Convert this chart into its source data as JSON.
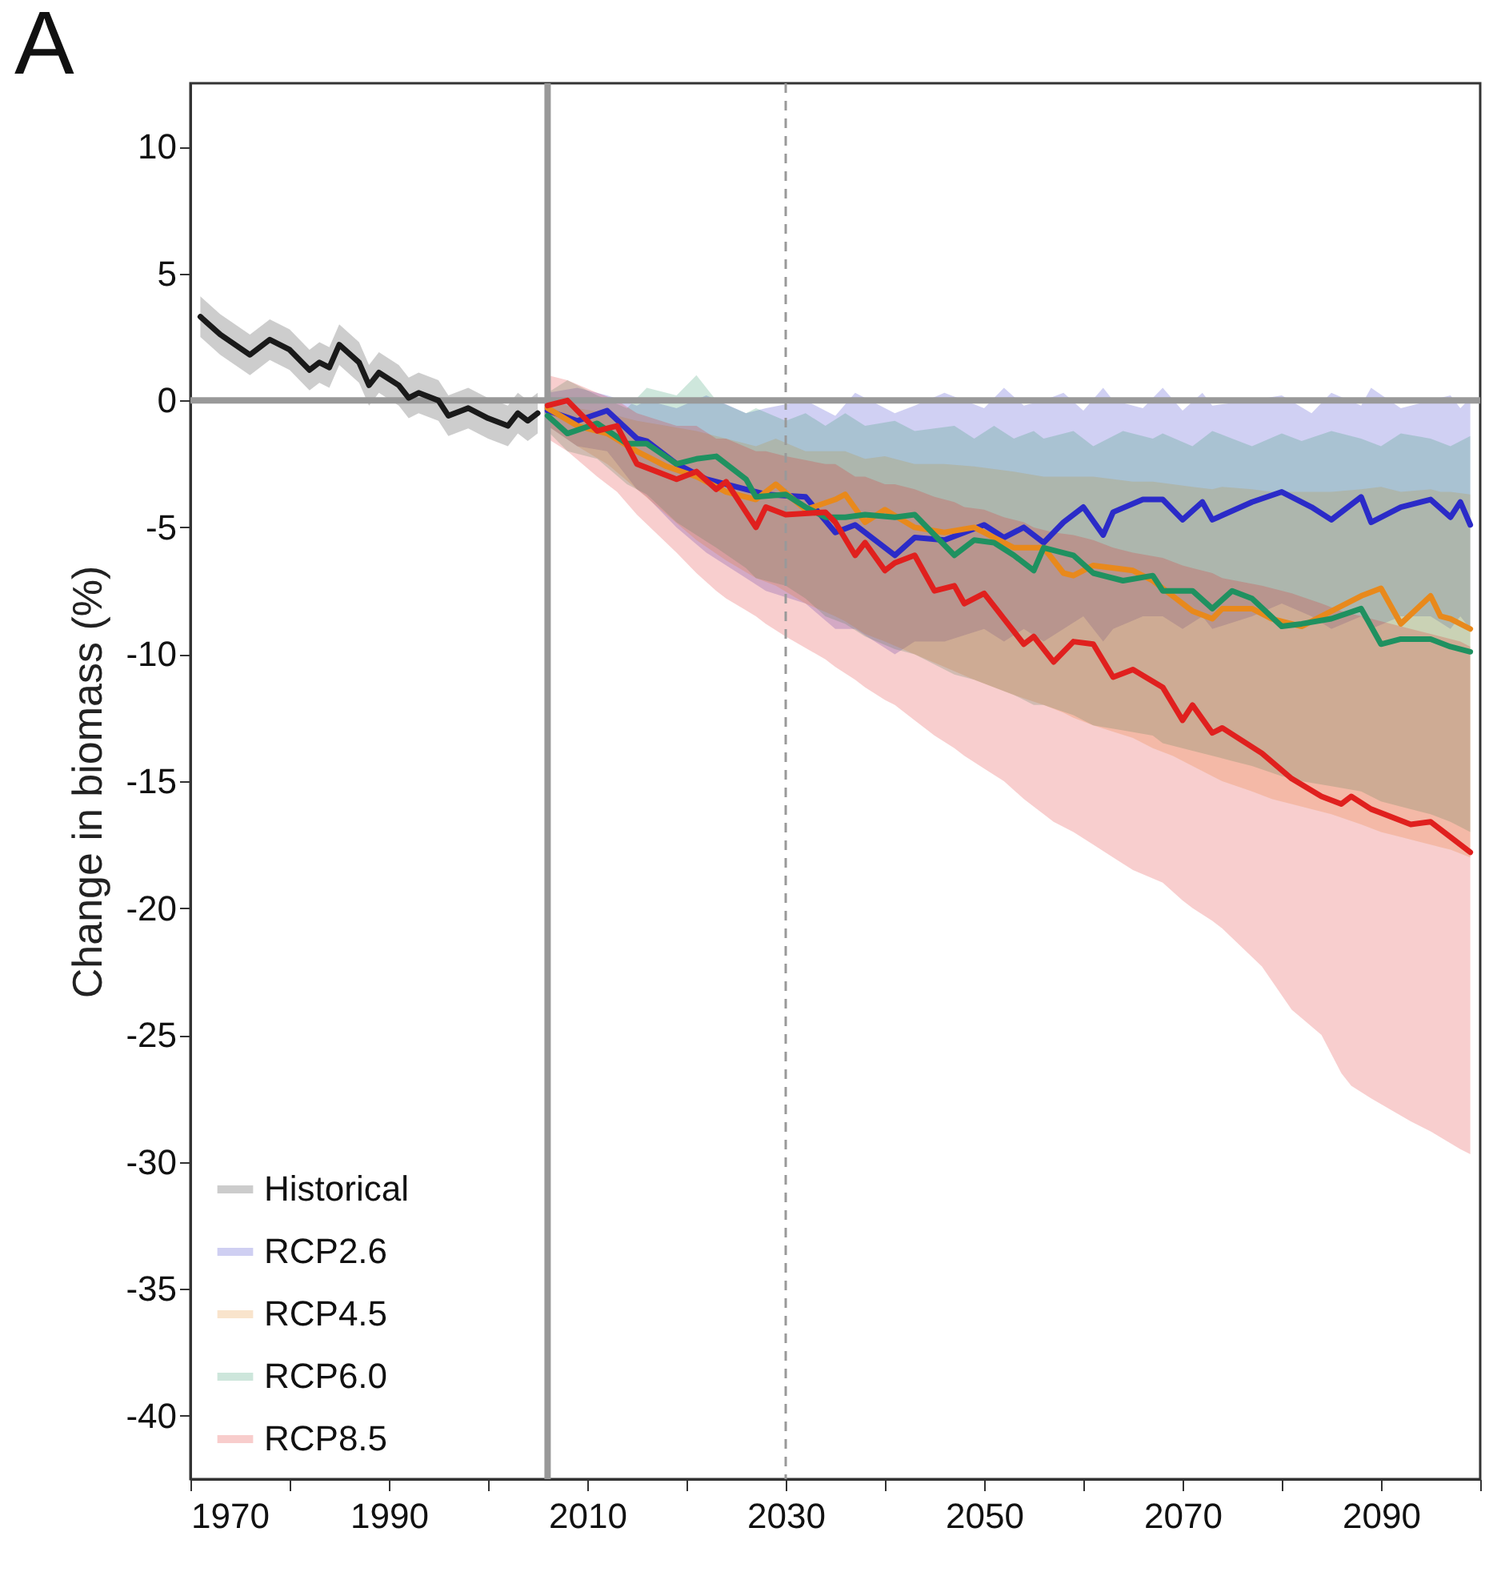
{
  "chart_data": {
    "type": "line",
    "title": "A",
    "ylabel": "Change in biomass (%)",
    "xlim": [
      1970,
      2100
    ],
    "xticks": [
      1970,
      {
        "value": 1980,
        "label": null
      },
      1990,
      {
        "value": 2000,
        "label": null
      },
      2010,
      {
        "value": 2020,
        "label": null
      },
      2030,
      {
        "value": 2040,
        "label": null
      },
      2050,
      {
        "value": 2060,
        "label": null
      },
      2070,
      {
        "value": 2080,
        "label": null
      },
      2090,
      {
        "value": 2100,
        "label": null
      }
    ],
    "ylim": [
      -42.5,
      12.5
    ],
    "yticks": [
      -40,
      -35,
      -30,
      -25,
      -20,
      -15,
      -10,
      -5,
      0,
      5,
      10
    ],
    "grid": false,
    "legend": "bottom left",
    "ref_lines": [
      {
        "axis": "y",
        "value": 0,
        "color": "#999999",
        "line_style": "solid"
      },
      {
        "axis": "x",
        "value": 2006,
        "color": "#999999",
        "line_style": "solid"
      },
      {
        "axis": "x",
        "value": 2030,
        "color": "#999999",
        "line_style": "dashed"
      }
    ],
    "series": [
      {
        "name": "Historical",
        "color": "#1a1a1a",
        "x": [
          1971,
          1973,
          1976,
          1978,
          1980,
          1982,
          1983,
          1984,
          1985,
          1987,
          1988,
          1989,
          1991,
          1992,
          1993,
          1995,
          1996,
          1998,
          2000,
          2002,
          2003,
          2004,
          2005
        ],
        "values": [
          3.3,
          2.6,
          1.8,
          2.4,
          2.0,
          1.2,
          1.5,
          1.3,
          2.2,
          1.5,
          0.6,
          1.1,
          0.6,
          0.1,
          0.3,
          0,
          -0.6,
          -0.3,
          -0.7,
          -1.0,
          -0.5,
          -0.8,
          -0.5
        ],
        "upper": [
          4.1,
          3.4,
          2.6,
          3.2,
          2.8,
          2.0,
          2.3,
          2.1,
          3.0,
          2.3,
          1.4,
          1.9,
          1.4,
          0.9,
          1.1,
          0.8,
          0.2,
          0.5,
          0.1,
          -0.2,
          0.3,
          0,
          0.3
        ],
        "lower": [
          2.5,
          1.8,
          1.0,
          1.6,
          1.2,
          0.4,
          0.7,
          0.5,
          1.4,
          0.7,
          -0.2,
          0.3,
          -0.2,
          -0.7,
          -0.5,
          -0.8,
          -1.4,
          -1.1,
          -1.5,
          -1.8,
          -1.3,
          -1.6,
          -1.3
        ]
      },
      {
        "name": "RCP2.6",
        "color": "#2b2bc8",
        "x": [
          2006,
          2009,
          2012,
          2015,
          2016,
          2019,
          2022,
          2026,
          2028,
          2032,
          2035,
          2037,
          2041,
          2043,
          2046,
          2050,
          2052,
          2054,
          2056,
          2058,
          2060,
          2062,
          2063,
          2066,
          2068,
          2070,
          2072,
          2073,
          2077,
          2080,
          2083,
          2085,
          2088,
          2089,
          2092,
          2095,
          2097,
          2098,
          2099
        ],
        "values": [
          -0.4,
          -0.8,
          -0.4,
          -1.5,
          -1.6,
          -2.5,
          -3.1,
          -3.5,
          -3.7,
          -3.8,
          -5.2,
          -4.9,
          -6.1,
          -5.4,
          -5.5,
          -4.9,
          -5.4,
          -5.0,
          -5.6,
          -4.8,
          -4.2,
          -5.3,
          -4.4,
          -3.9,
          -3.9,
          -4.7,
          -4.0,
          -4.7,
          -4.0,
          -3.6,
          -4.2,
          -4.7,
          -3.8,
          -4.8,
          -4.2,
          -3.9,
          -4.6,
          -4.0,
          -4.9
        ],
        "upper": [
          0.3,
          0.5,
          0.2,
          -0.2,
          0,
          -0.3,
          0.2,
          -0.5,
          -0.3,
          0,
          -0.6,
          0.3,
          -0.5,
          -0.2,
          0.3,
          -0.3,
          0.5,
          -0.2,
          0,
          0.3,
          -0.4,
          0.5,
          0,
          -0.3,
          0.5,
          -0.4,
          0.3,
          -0.2,
          0,
          0.2,
          -0.5,
          0.3,
          -0.2,
          0.5,
          -0.3,
          0,
          0.2,
          -0.3,
          0.1
        ],
        "lower": [
          -1,
          -1.8,
          -2,
          -3.5,
          -3.8,
          -5,
          -6,
          -7,
          -7.5,
          -8,
          -9,
          -9,
          -10,
          -9.5,
          -9.5,
          -9,
          -9.5,
          -9,
          -9.5,
          -9,
          -8.5,
          -9.5,
          -9,
          -8.5,
          -8.5,
          -9,
          -8.5,
          -9,
          -8.5,
          -8,
          -8.5,
          -9,
          -8.5,
          -9,
          -8.5,
          -8.5,
          -9,
          -8.5,
          -9
        ]
      },
      {
        "name": "RCP4.5",
        "color": "#e8891c",
        "x": [
          2006,
          2009,
          2012,
          2015,
          2018,
          2021,
          2024,
          2027,
          2029,
          2032,
          2035,
          2036,
          2038,
          2040,
          2043,
          2046,
          2049,
          2051,
          2053,
          2056,
          2058,
          2059,
          2061,
          2065,
          2067,
          2069,
          2071,
          2073,
          2074,
          2077,
          2079,
          2082,
          2085,
          2088,
          2090,
          2092,
          2095,
          2096,
          2097,
          2099
        ],
        "values": [
          -0.3,
          -1.0,
          -1.3,
          -2.0,
          -2.6,
          -3.0,
          -3.6,
          -3.9,
          -3.3,
          -4.3,
          -3.9,
          -3.7,
          -4.8,
          -4.3,
          -5.0,
          -5.2,
          -5.0,
          -5.4,
          -5.8,
          -5.8,
          -6.8,
          -6.9,
          -6.5,
          -6.7,
          -7.1,
          -7.7,
          -8.3,
          -8.6,
          -8.2,
          -8.2,
          -8.6,
          -8.9,
          -8.3,
          -7.7,
          -7.4,
          -8.8,
          -7.7,
          -8.5,
          -8.6,
          -9.0
        ],
        "upper": [
          0,
          -0.3,
          -0.5,
          -0.8,
          -1,
          -1.2,
          -1.5,
          -1.8,
          -1.5,
          -2,
          -2,
          -2,
          -2.3,
          -2.2,
          -2.5,
          -2.5,
          -2.6,
          -2.7,
          -2.8,
          -3,
          -3,
          -3,
          -3,
          -3.2,
          -3.2,
          -3.3,
          -3.4,
          -3.5,
          -3.4,
          -3.5,
          -3.6,
          -3.6,
          -3.6,
          -3.5,
          -3.4,
          -3.6,
          -3.5,
          -3.6,
          -3.6,
          -3.7
        ],
        "lower": [
          -1,
          -1.8,
          -2.5,
          -3.5,
          -4.5,
          -5.5,
          -6.3,
          -7,
          -7.3,
          -8,
          -8.5,
          -8.7,
          -9.2,
          -9.5,
          -10,
          -10.5,
          -11,
          -11.3,
          -11.6,
          -12,
          -12.3,
          -12.5,
          -12.8,
          -13.3,
          -13.7,
          -14,
          -14.4,
          -14.8,
          -15,
          -15.4,
          -15.7,
          -16,
          -16.3,
          -16.7,
          -17,
          -17.2,
          -17.5,
          -17.6,
          -17.7,
          -18
        ]
      },
      {
        "name": "RCP6.0",
        "color": "#1f9160",
        "x": [
          2006,
          2008,
          2011,
          2014,
          2016,
          2019,
          2021,
          2023,
          2026,
          2027,
          2030,
          2032,
          2034,
          2036,
          2038,
          2041,
          2043,
          2047,
          2049,
          2051,
          2053,
          2055,
          2056,
          2059,
          2061,
          2064,
          2067,
          2068,
          2071,
          2073,
          2075,
          2077,
          2080,
          2082,
          2085,
          2088,
          2090,
          2092,
          2095,
          2097,
          2099
        ],
        "values": [
          -0.6,
          -1.3,
          -0.9,
          -1.7,
          -1.7,
          -2.5,
          -2.3,
          -2.2,
          -3.1,
          -3.8,
          -3.7,
          -4.2,
          -4.6,
          -4.6,
          -4.5,
          -4.6,
          -4.5,
          -6.1,
          -5.5,
          -5.6,
          -6.1,
          -6.7,
          -5.8,
          -6.1,
          -6.8,
          -7.1,
          -6.9,
          -7.5,
          -7.5,
          -8.2,
          -7.5,
          -7.8,
          -8.9,
          -8.8,
          -8.6,
          -8.2,
          -9.6,
          -9.4,
          -9.4,
          -9.7,
          -9.9
        ],
        "upper": [
          0.3,
          0.8,
          0.2,
          -0.3,
          0.5,
          0.2,
          1.0,
          0,
          -0.5,
          -0.3,
          -0.8,
          -0.5,
          -1,
          -0.5,
          -1,
          -0.8,
          -1.2,
          -1.0,
          -1.5,
          -1.0,
          -1.5,
          -1.2,
          -1.5,
          -1.2,
          -1.8,
          -1.2,
          -1.5,
          -1.3,
          -1.8,
          -1.2,
          -1.5,
          -1.8,
          -1.3,
          -1.6,
          -1.2,
          -1.5,
          -1.8,
          -1.3,
          -1.5,
          -1.8,
          -1.4
        ],
        "lower": [
          -1.2,
          -2,
          -2.3,
          -3.3,
          -3.7,
          -4.8,
          -5.3,
          -5.8,
          -6.6,
          -7,
          -7.3,
          -7.8,
          -8.5,
          -8.8,
          -9.3,
          -9.8,
          -10,
          -10.8,
          -11,
          -11.3,
          -11.6,
          -12,
          -12,
          -12.4,
          -12.8,
          -13,
          -13.2,
          -13.5,
          -13.8,
          -14,
          -14.2,
          -14.4,
          -14.8,
          -15,
          -15.2,
          -15.4,
          -15.8,
          -16,
          -16.3,
          -16.6,
          -17
        ]
      },
      {
        "name": "RCP8.5",
        "color": "#e0201e",
        "x": [
          2006,
          2008,
          2011,
          2013,
          2015,
          2019,
          2021,
          2023,
          2024,
          2027,
          2028,
          2030,
          2034,
          2035,
          2037,
          2038,
          2040,
          2041,
          2043,
          2045,
          2047,
          2048,
          2050,
          2052,
          2054,
          2055,
          2057,
          2059,
          2061,
          2063,
          2065,
          2068,
          2070,
          2071,
          2073,
          2074,
          2078,
          2081,
          2084,
          2086,
          2087,
          2089,
          2093,
          2095,
          2098,
          2099
        ],
        "values": [
          -0.2,
          0,
          -1.2,
          -1.0,
          -2.5,
          -3.1,
          -2.8,
          -3.5,
          -3.2,
          -5.0,
          -4.2,
          -4.5,
          -4.4,
          -4.8,
          -6.1,
          -5.6,
          -6.7,
          -6.4,
          -6.1,
          -7.5,
          -7.3,
          -8.0,
          -7.6,
          -8.6,
          -9.6,
          -9.3,
          -10.3,
          -9.5,
          -9.6,
          -10.9,
          -10.6,
          -11.3,
          -12.6,
          -12.0,
          -13.1,
          -12.9,
          -13.9,
          -14.9,
          -15.6,
          -15.9,
          -15.6,
          -16.1,
          -16.7,
          -16.6,
          -17.5,
          -17.8
        ],
        "upper": [
          1,
          0.8,
          0.3,
          0,
          -0.5,
          -1,
          -1,
          -1.5,
          -1.5,
          -2,
          -2,
          -2.2,
          -2.5,
          -2.5,
          -3,
          -3,
          -3.3,
          -3.3,
          -3.5,
          -3.8,
          -4,
          -4.2,
          -4.3,
          -4.6,
          -4.8,
          -5,
          -5.2,
          -5.3,
          -5.5,
          -5.8,
          -6,
          -6.2,
          -6.5,
          -6.6,
          -6.8,
          -7,
          -7.3,
          -7.6,
          -8,
          -8.3,
          -8.4,
          -8.6,
          -9,
          -9.2,
          -9.5,
          -9.7
        ],
        "lower": [
          -1.5,
          -2,
          -3,
          -3.6,
          -4.5,
          -6,
          -6.8,
          -7.5,
          -7.8,
          -8.5,
          -8.8,
          -9.3,
          -10.2,
          -10.5,
          -11,
          -11.3,
          -11.8,
          -12,
          -12.6,
          -13.2,
          -13.7,
          -14,
          -14.5,
          -15,
          -15.7,
          -16,
          -16.6,
          -17,
          -17.5,
          -18,
          -18.5,
          -19,
          -19.7,
          -20,
          -20.5,
          -20.8,
          -22.3,
          -24,
          -25,
          -26.5,
          -27,
          -27.5,
          -28.4,
          -28.8,
          -29.5,
          -29.7
        ]
      }
    ]
  }
}
